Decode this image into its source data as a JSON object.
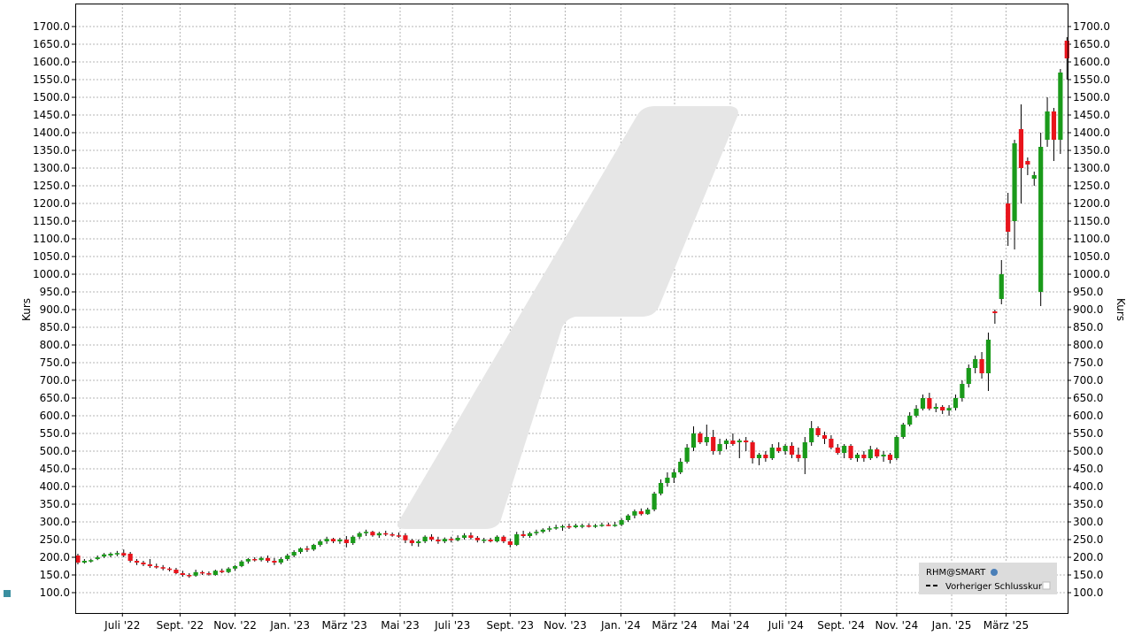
{
  "chart_data": {
    "type": "candlestick",
    "y_label": "Kurs",
    "legend": {
      "title": "RHM@SMART",
      "entries": [
        "Vorheriger Schlusskurs"
      ]
    },
    "legend_corner": "bottom-right",
    "up_color": "#1a9a1a",
    "down_color": "#e8141c",
    "wick_color": "#000000",
    "grid": true,
    "xlim": [
      -0.4,
      151.1
    ],
    "xticks": [
      {
        "value": 6.8,
        "label": "Juli '22"
      },
      {
        "value": 15.6,
        "label": "Sept. '22"
      },
      {
        "value": 24.0,
        "label": "Nov. '22"
      },
      {
        "value": 32.4,
        "label": "Jan. '23"
      },
      {
        "value": 40.7,
        "label": "März '23"
      },
      {
        "value": 49.2,
        "label": "Mai '23"
      },
      {
        "value": 57.2,
        "label": "Juli '23"
      },
      {
        "value": 66.0,
        "label": "Sept. '23"
      },
      {
        "value": 74.4,
        "label": "Nov. '23"
      },
      {
        "value": 82.9,
        "label": "Jan. '24"
      },
      {
        "value": 91.1,
        "label": "März '24"
      },
      {
        "value": 99.6,
        "label": "Mai '24"
      },
      {
        "value": 108.1,
        "label": "Juli '24"
      },
      {
        "value": 116.5,
        "label": "Sept. '24"
      },
      {
        "value": 125.0,
        "label": "Nov. '24"
      },
      {
        "value": 133.4,
        "label": "Jan. '25"
      },
      {
        "value": 141.7,
        "label": "März '25"
      }
    ],
    "ylim": [
      42.5,
      1765
    ],
    "yticks": [
      {
        "value": 100,
        "label": "100.0"
      },
      {
        "value": 150,
        "label": "150.0"
      },
      {
        "value": 200,
        "label": "200.0"
      },
      {
        "value": 250,
        "label": "250.0"
      },
      {
        "value": 300,
        "label": "300.0"
      },
      {
        "value": 350,
        "label": "350.0"
      },
      {
        "value": 400,
        "label": "400.0"
      },
      {
        "value": 450,
        "label": "450.0"
      },
      {
        "value": 500,
        "label": "500.0"
      },
      {
        "value": 550,
        "label": "550.0"
      },
      {
        "value": 600,
        "label": "600.0"
      },
      {
        "value": 650,
        "label": "650.0"
      },
      {
        "value": 700,
        "label": "700.0"
      },
      {
        "value": 750,
        "label": "750.0"
      },
      {
        "value": 800,
        "label": "800.0"
      },
      {
        "value": 850,
        "label": "850.0"
      },
      {
        "value": 900,
        "label": "900.0"
      },
      {
        "value": 950,
        "label": "950.0"
      },
      {
        "value": 1000,
        "label": "1000.0"
      },
      {
        "value": 1050,
        "label": "1050.0"
      },
      {
        "value": 1100,
        "label": "1100.0"
      },
      {
        "value": 1150,
        "label": "1150.0"
      },
      {
        "value": 1200,
        "label": "1200.0"
      },
      {
        "value": 1250,
        "label": "1250.0"
      },
      {
        "value": 1300,
        "label": "1300.0"
      },
      {
        "value": 1350,
        "label": "1350.0"
      },
      {
        "value": 1400,
        "label": "1400.0"
      },
      {
        "value": 1450,
        "label": "1450.0"
      },
      {
        "value": 1500,
        "label": "1500.0"
      },
      {
        "value": 1550,
        "label": "1550.0"
      },
      {
        "value": 1600,
        "label": "1600.0"
      },
      {
        "value": 1650,
        "label": "1650.0"
      },
      {
        "value": 1700,
        "label": "1700.0"
      }
    ],
    "ohlc": [
      [
        205,
        210,
        180,
        185
      ],
      [
        185,
        195,
        182,
        190
      ],
      [
        188,
        196,
        185,
        192
      ],
      [
        195,
        205,
        192,
        200
      ],
      [
        202,
        212,
        198,
        208
      ],
      [
        205,
        214,
        200,
        210
      ],
      [
        208,
        218,
        203,
        212
      ],
      [
        212,
        222,
        200,
        205
      ],
      [
        210,
        215,
        185,
        190
      ],
      [
        190,
        195,
        178,
        185
      ],
      [
        185,
        190,
        175,
        180
      ],
      [
        180,
        195,
        170,
        175
      ],
      [
        175,
        182,
        168,
        172
      ],
      [
        172,
        178,
        163,
        168
      ],
      [
        168,
        172,
        160,
        165
      ],
      [
        165,
        170,
        152,
        155
      ],
      [
        155,
        162,
        145,
        150
      ],
      [
        150,
        155,
        142,
        148
      ],
      [
        148,
        165,
        145,
        158
      ],
      [
        158,
        162,
        150,
        155
      ],
      [
        155,
        160,
        148,
        152
      ],
      [
        150,
        165,
        148,
        162
      ],
      [
        162,
        168,
        155,
        158
      ],
      [
        158,
        172,
        155,
        168
      ],
      [
        168,
        178,
        162,
        175
      ],
      [
        175,
        192,
        172,
        188
      ],
      [
        188,
        198,
        182,
        195
      ],
      [
        195,
        200,
        188,
        192
      ],
      [
        192,
        202,
        188,
        198
      ],
      [
        198,
        205,
        185,
        190
      ],
      [
        190,
        198,
        178,
        185
      ],
      [
        185,
        200,
        180,
        195
      ],
      [
        195,
        210,
        190,
        205
      ],
      [
        205,
        220,
        200,
        215
      ],
      [
        215,
        228,
        210,
        225
      ],
      [
        225,
        232,
        215,
        222
      ],
      [
        222,
        238,
        218,
        235
      ],
      [
        235,
        250,
        230,
        245
      ],
      [
        245,
        258,
        238,
        252
      ],
      [
        252,
        255,
        240,
        245
      ],
      [
        245,
        255,
        238,
        250
      ],
      [
        250,
        260,
        228,
        240
      ],
      [
        240,
        262,
        235,
        258
      ],
      [
        258,
        272,
        252,
        268
      ],
      [
        268,
        278,
        260,
        272
      ],
      [
        272,
        275,
        258,
        262
      ],
      [
        262,
        272,
        255,
        268
      ],
      [
        268,
        275,
        260,
        265
      ],
      [
        265,
        270,
        258,
        262
      ],
      [
        262,
        270,
        255,
        260
      ],
      [
        262,
        268,
        240,
        248
      ],
      [
        248,
        252,
        232,
        240
      ],
      [
        240,
        250,
        230,
        245
      ],
      [
        245,
        262,
        240,
        258
      ],
      [
        258,
        265,
        245,
        250
      ],
      [
        250,
        258,
        238,
        245
      ],
      [
        245,
        256,
        240,
        252
      ],
      [
        252,
        258,
        242,
        248
      ],
      [
        248,
        262,
        245,
        255
      ],
      [
        255,
        268,
        250,
        262
      ],
      [
        262,
        270,
        250,
        255
      ],
      [
        255,
        260,
        242,
        248
      ],
      [
        248,
        255,
        240,
        250
      ],
      [
        250,
        255,
        242,
        245
      ],
      [
        245,
        262,
        242,
        258
      ],
      [
        258,
        262,
        240,
        245
      ],
      [
        245,
        252,
        228,
        235
      ],
      [
        235,
        272,
        232,
        265
      ],
      [
        265,
        275,
        255,
        260
      ],
      [
        260,
        272,
        255,
        268
      ],
      [
        268,
        278,
        262,
        272
      ],
      [
        272,
        282,
        268,
        278
      ],
      [
        278,
        288,
        272,
        282
      ],
      [
        282,
        292,
        278,
        285
      ],
      [
        285,
        292,
        275,
        288
      ],
      [
        288,
        295,
        280,
        285
      ],
      [
        285,
        295,
        282,
        290
      ],
      [
        288,
        295,
        282,
        290
      ],
      [
        290,
        296,
        284,
        288
      ],
      [
        288,
        294,
        283,
        290
      ],
      [
        290,
        298,
        286,
        292
      ],
      [
        292,
        298,
        288,
        290
      ],
      [
        290,
        300,
        286,
        292
      ],
      [
        292,
        310,
        288,
        305
      ],
      [
        305,
        322,
        300,
        318
      ],
      [
        318,
        335,
        310,
        330
      ],
      [
        330,
        338,
        318,
        322
      ],
      [
        322,
        340,
        320,
        335
      ],
      [
        335,
        385,
        330,
        380
      ],
      [
        380,
        420,
        375,
        410
      ],
      [
        410,
        440,
        400,
        425
      ],
      [
        425,
        450,
        410,
        440
      ],
      [
        440,
        480,
        435,
        470
      ],
      [
        470,
        520,
        465,
        510
      ],
      [
        510,
        570,
        500,
        550
      ],
      [
        550,
        555,
        520,
        525
      ],
      [
        525,
        575,
        515,
        540
      ],
      [
        540,
        560,
        490,
        500
      ],
      [
        500,
        535,
        490,
        520
      ],
      [
        520,
        535,
        505,
        530
      ],
      [
        530,
        550,
        515,
        520
      ],
      [
        525,
        535,
        480,
        530
      ],
      [
        530,
        540,
        500,
        525
      ],
      [
        525,
        530,
        465,
        480
      ],
      [
        480,
        495,
        460,
        490
      ],
      [
        490,
        500,
        470,
        480
      ],
      [
        480,
        520,
        475,
        510
      ],
      [
        510,
        525,
        495,
        500
      ],
      [
        500,
        520,
        490,
        515
      ],
      [
        515,
        525,
        480,
        490
      ],
      [
        490,
        510,
        470,
        480
      ],
      [
        480,
        540,
        435,
        525
      ],
      [
        525,
        585,
        515,
        565
      ],
      [
        565,
        570,
        540,
        545
      ],
      [
        545,
        555,
        520,
        535
      ],
      [
        535,
        545,
        505,
        510
      ],
      [
        510,
        520,
        490,
        495
      ],
      [
        495,
        520,
        480,
        515
      ],
      [
        515,
        520,
        475,
        480
      ],
      [
        480,
        495,
        470,
        490
      ],
      [
        490,
        500,
        470,
        480
      ],
      [
        480,
        515,
        475,
        505
      ],
      [
        505,
        510,
        480,
        485
      ],
      [
        485,
        500,
        470,
        490
      ],
      [
        490,
        495,
        465,
        475
      ],
      [
        480,
        545,
        475,
        540
      ],
      [
        540,
        580,
        535,
        575
      ],
      [
        575,
        610,
        570,
        600
      ],
      [
        600,
        630,
        595,
        620
      ],
      [
        620,
        660,
        615,
        650
      ],
      [
        650,
        665,
        615,
        620
      ],
      [
        620,
        635,
        610,
        625
      ],
      [
        625,
        630,
        605,
        615
      ],
      [
        615,
        630,
        600,
        622
      ],
      [
        622,
        660,
        615,
        650
      ],
      [
        650,
        700,
        640,
        690
      ],
      [
        690,
        745,
        680,
        735
      ],
      [
        735,
        770,
        720,
        760
      ],
      [
        760,
        780,
        705,
        720
      ],
      [
        720,
        835,
        670,
        815
      ],
      [
        895,
        900,
        860,
        890
      ],
      [
        930,
        1040,
        915,
        1000
      ],
      [
        1200,
        1230,
        1080,
        1120
      ],
      [
        1150,
        1380,
        1070,
        1370
      ],
      [
        1410,
        1480,
        1200,
        1300
      ],
      [
        1320,
        1330,
        1280,
        1310
      ],
      [
        1270,
        1290,
        1250,
        1280
      ],
      [
        950,
        1400,
        910,
        1360
      ],
      [
        1380,
        1500,
        1360,
        1460
      ],
      [
        1460,
        1470,
        1320,
        1380
      ],
      [
        1380,
        1580,
        1340,
        1570
      ],
      [
        1660,
        1670,
        1550,
        1610
      ]
    ]
  }
}
